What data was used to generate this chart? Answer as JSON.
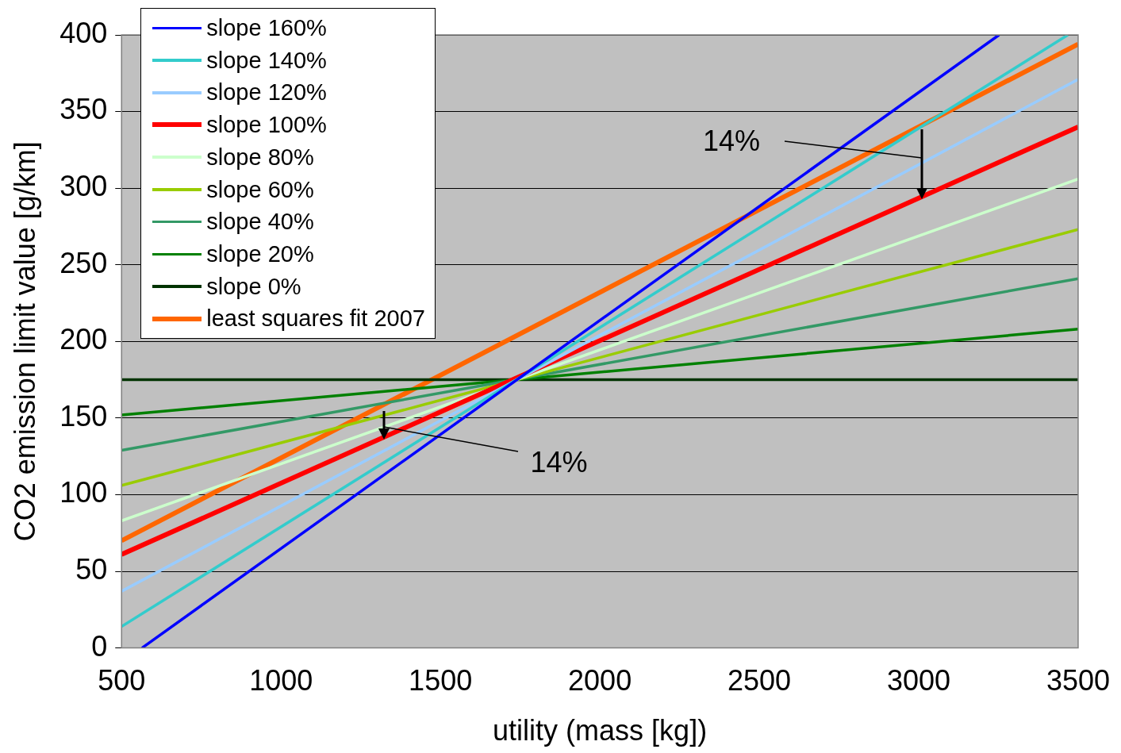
{
  "chart_data": {
    "type": "line",
    "xlabel": "utility (mass [kg])",
    "ylabel": "CO2 emission limit value [g/km]",
    "xlim": [
      500,
      3500
    ],
    "xticks": [
      500,
      1000,
      1500,
      2000,
      2500,
      3000,
      3500
    ],
    "ylim": [
      0,
      400
    ],
    "yticks": [
      0,
      50,
      100,
      150,
      200,
      250,
      300,
      350,
      400
    ],
    "grid": "y",
    "legend": "top left",
    "marker": "none",
    "line_style": "solid",
    "series": [
      {
        "name": "slope 160%",
        "color": "#0000ff",
        "x": [
          564,
          3252
        ],
        "values": [
          0,
          400
        ]
      },
      {
        "name": "slope 140%",
        "color": "#33cccc",
        "x": [
          500,
          3468
        ],
        "values": [
          14,
          400
        ]
      },
      {
        "name": "slope 120%",
        "color": "#99ccff",
        "x": [
          500,
          3500
        ],
        "values": [
          37,
          371
        ]
      },
      {
        "name": "slope 100%",
        "color": "#ff0000",
        "x": [
          500,
          3500
        ],
        "values": [
          61,
          340
        ]
      },
      {
        "name": "slope 80%",
        "color": "#ccffcc",
        "x": [
          500,
          3500
        ],
        "values": [
          83,
          306
        ]
      },
      {
        "name": "slope 60%",
        "color": "#99cc00",
        "x": [
          500,
          3500
        ],
        "values": [
          106,
          273
        ]
      },
      {
        "name": "slope 40%",
        "color": "#339966",
        "x": [
          500,
          3500
        ],
        "values": [
          129,
          241
        ]
      },
      {
        "name": "slope 20%",
        "color": "#008000",
        "x": [
          500,
          3500
        ],
        "values": [
          152,
          208
        ]
      },
      {
        "name": "slope 0%",
        "color": "#003300",
        "x": [
          500,
          3500
        ],
        "values": [
          175,
          175
        ]
      },
      {
        "name": "least squares fit 2007",
        "color": "#ff6600",
        "x": [
          500,
          3500
        ],
        "values": [
          70,
          394
        ]
      }
    ],
    "annotations": [
      {
        "text": "14%",
        "x": 3010,
        "y": 320
      },
      {
        "text": "14%",
        "x": 1322,
        "y": 144
      }
    ]
  }
}
